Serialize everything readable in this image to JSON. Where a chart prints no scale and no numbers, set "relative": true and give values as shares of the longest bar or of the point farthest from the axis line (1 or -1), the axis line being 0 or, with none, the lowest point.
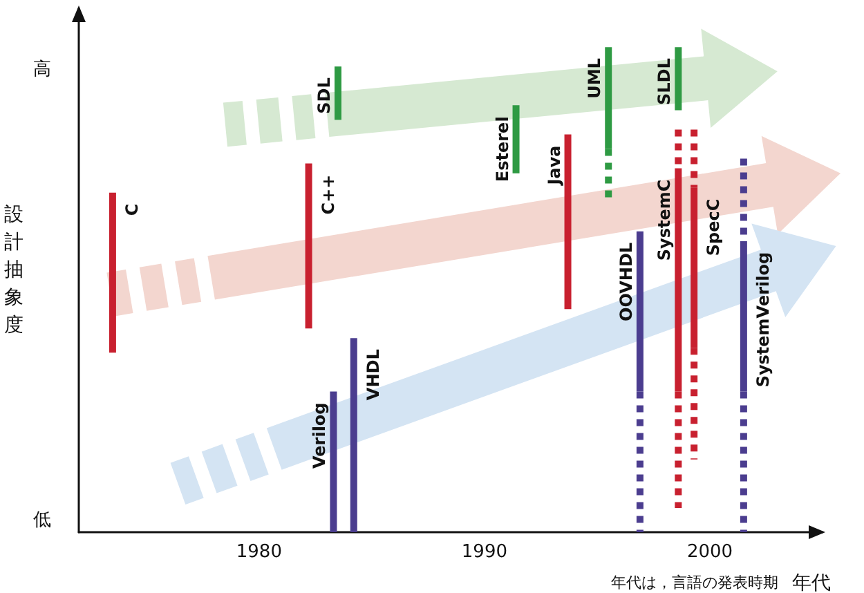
{
  "chart_data": {
    "type": "line",
    "ylabel": "設計抽象度",
    "xlabel": "年代",
    "annotations": [
      "高",
      "低",
      "年代は，言語の発表時期"
    ],
    "relative": true,
    "xlim": [
      1972,
      2005
    ],
    "xticks": [
      1980,
      1990,
      2000
    ],
    "grid": false,
    "legend": false,
    "marker": "none",
    "line_style": "solid",
    "series": [
      {
        "name": "C",
        "color": "#c8202f",
        "x": [
          1973.5,
          1973.5
        ],
        "values": [
          0.7,
          0.37
        ]
      },
      {
        "name": "C++",
        "color": "#c8202f",
        "x": [
          1982.2,
          1982.2
        ],
        "values": [
          0.76,
          0.42
        ]
      },
      {
        "name": "SDL",
        "color": "#2e9a43",
        "x": [
          1983.5,
          1983.5
        ],
        "values": [
          0.96,
          0.85
        ]
      },
      {
        "name": "Verilog",
        "color": "#4b3d8f",
        "x": [
          1983.3,
          1983.3
        ],
        "values": [
          0.29,
          0
        ]
      },
      {
        "name": "VHDL",
        "color": "#4b3d8f",
        "x": [
          1984.2,
          1984.2
        ],
        "values": [
          0.4,
          0
        ]
      },
      {
        "name": "Esterel",
        "color": "#2e9a43",
        "x": [
          1991.4,
          1991.4
        ],
        "values": [
          0.88,
          0.74
        ]
      },
      {
        "name": "Java",
        "color": "#c8202f",
        "x": [
          1993.7,
          1993.7
        ],
        "values": [
          0.82,
          0.46
        ]
      },
      {
        "name": "UML",
        "color": "#2e9a43",
        "x": [
          1995.5,
          1995.5
        ],
        "values": [
          1,
          0.79
        ]
      },
      {
        "color": "#2e9a43",
        "x": [
          1995.5,
          1995.5
        ],
        "values": [
          0.79,
          0.69
        ],
        "line_style": "dotted"
      },
      {
        "name": "OOVHDL",
        "color": "#4b3d8f",
        "x": [
          1996.9,
          1996.9
        ],
        "values": [
          0.62,
          0.29
        ]
      },
      {
        "color": "#4b3d8f",
        "x": [
          1996.9,
          1996.9
        ],
        "values": [
          0.29,
          0
        ],
        "line_style": "dotted"
      },
      {
        "name": "SLDL",
        "color": "#2e9a43",
        "x": [
          1998.6,
          1998.6
        ],
        "values": [
          1,
          0.87
        ]
      },
      {
        "name": "SystemC",
        "color": "#c8202f",
        "x": [
          1998.6,
          1998.6
        ],
        "values": [
          0.75,
          0.29
        ]
      },
      {
        "color": "#c8202f",
        "x": [
          1998.6,
          1998.6
        ],
        "values": [
          0.83,
          0.75
        ],
        "line_style": "dotted"
      },
      {
        "color": "#c8202f",
        "x": [
          1998.6,
          1998.6
        ],
        "values": [
          0.29,
          0.05
        ],
        "line_style": "dotted"
      },
      {
        "name": "SpecC",
        "color": "#c8202f",
        "x": [
          1999.3,
          1999.3
        ],
        "values": [
          0.71,
          0.38
        ]
      },
      {
        "color": "#c8202f",
        "x": [
          1999.3,
          1999.3
        ],
        "values": [
          0.83,
          0.71
        ],
        "line_style": "dotted"
      },
      {
        "color": "#c8202f",
        "x": [
          1999.3,
          1999.3
        ],
        "values": [
          0.38,
          0.15
        ],
        "line_style": "dotted"
      },
      {
        "name": "SystemVerilog",
        "color": "#4b3d8f",
        "x": [
          2001.5,
          2001.5
        ],
        "values": [
          0.6,
          0.29
        ]
      },
      {
        "color": "#4b3d8f",
        "x": [
          2001.5,
          2001.5
        ],
        "values": [
          0.77,
          0.6
        ],
        "line_style": "dotted"
      },
      {
        "color": "#4b3d8f",
        "x": [
          2001.5,
          2001.5
        ],
        "values": [
          0.29,
          0
        ],
        "line_style": "dotted"
      }
    ]
  }
}
